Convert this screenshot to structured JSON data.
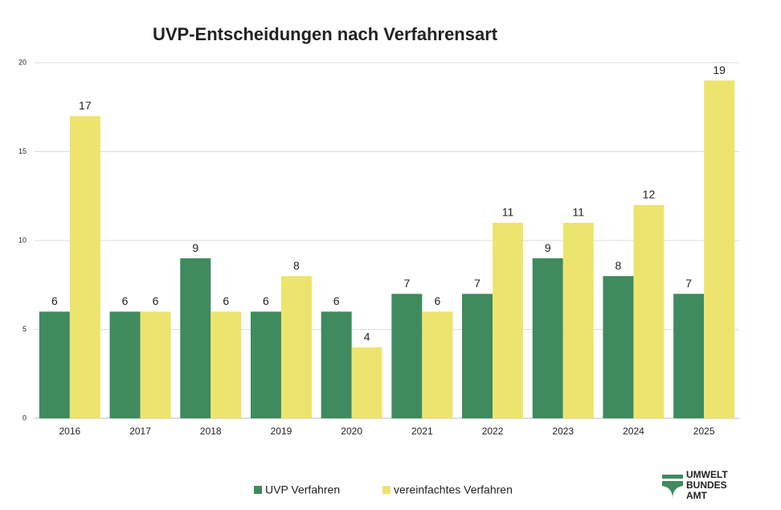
{
  "chart_data": {
    "type": "bar",
    "title": "UVP-Entscheidungen nach Verfahrensart",
    "categories": [
      "2016",
      "2017",
      "2018",
      "2019",
      "2020",
      "2021",
      "2022",
      "2023",
      "2024",
      "2025"
    ],
    "series": [
      {
        "name": "UVP Verfahren",
        "color": "#3f8a5e",
        "values": [
          6,
          6,
          9,
          6,
          6,
          7,
          7,
          9,
          8,
          7
        ]
      },
      {
        "name": "vereinfachtes Verfahren",
        "color": "#ede46e",
        "values": [
          17,
          6,
          6,
          8,
          4,
          6,
          11,
          11,
          12,
          19
        ]
      }
    ],
    "ylim": [
      0,
      20
    ],
    "yticks": [
      0,
      5,
      10,
      15,
      20
    ],
    "grid": true,
    "legend": "bottom"
  },
  "logo": {
    "lines": [
      "UMWELT",
      "BUNDES",
      "AMT"
    ]
  }
}
